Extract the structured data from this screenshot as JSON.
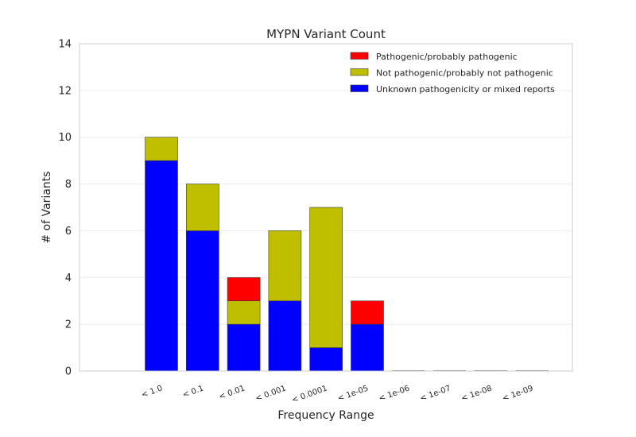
{
  "chart_data": {
    "type": "bar",
    "stacked": true,
    "title": "MYPN Variant Count",
    "xlabel": "Frequency Range",
    "ylabel": "# of Variants",
    "categories": [
      "< 1.0",
      "< 0.1",
      "< 0.01",
      "< 0.001",
      "< 0.0001",
      "< 1e-05",
      "< 1e-06",
      "< 1e-07",
      "< 1e-08",
      "< 1e-09"
    ],
    "ylim": [
      0,
      14
    ],
    "yticks": [
      0,
      2,
      4,
      6,
      8,
      10,
      12,
      14
    ],
    "grid": true,
    "legend_position": "top-right",
    "series": [
      {
        "name": "Unknown pathogenicity or mixed reports",
        "color": "#0000ff",
        "values": [
          9,
          6,
          2,
          3,
          1,
          2,
          0,
          0,
          0,
          0
        ]
      },
      {
        "name": "Not pathogenic/probably not pathogenic",
        "color": "#bfbf00",
        "values": [
          1,
          2,
          1,
          3,
          6,
          0,
          0,
          0,
          0,
          0
        ]
      },
      {
        "name": "Pathogenic/probably pathogenic",
        "color": "#ff0000",
        "values": [
          0,
          0,
          1,
          0,
          0,
          1,
          0,
          0,
          0,
          0
        ]
      }
    ],
    "legend_order": [
      2,
      1,
      0
    ]
  }
}
